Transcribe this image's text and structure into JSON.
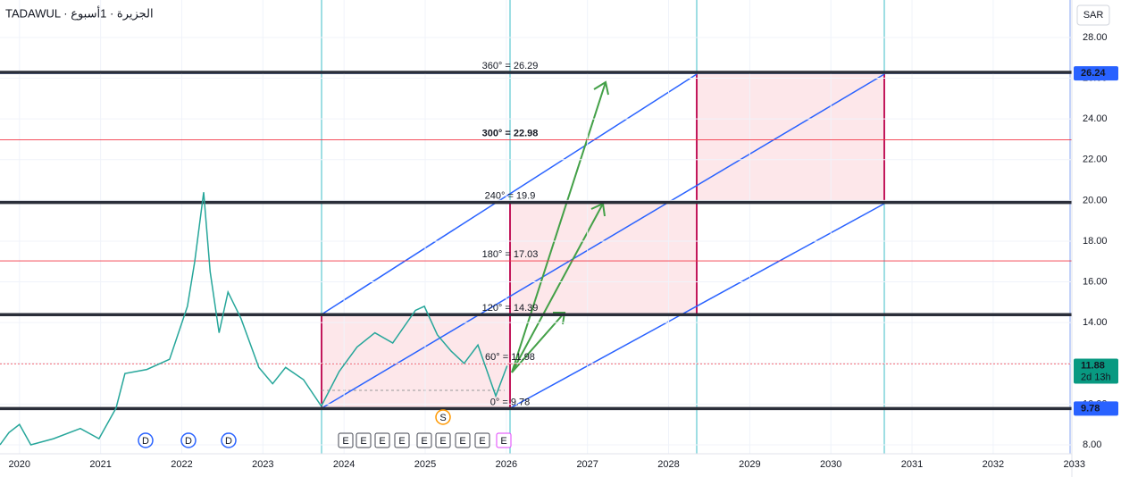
{
  "header": "TADAWUL · الجزيرة · 1أسبوع",
  "currency": "SAR",
  "chart_data": {
    "type": "line",
    "series": [
      {
        "color": "#26a69a",
        "x": [
          2019.76,
          2019.87,
          2020.0,
          2020.14,
          2020.42,
          2020.75,
          2020.98,
          2021.19,
          2021.3,
          2021.57,
          2021.85,
          2022.07,
          2022.16,
          2022.27,
          2022.35,
          2022.46,
          2022.57,
          2022.73,
          2022.95,
          2023.12,
          2023.28,
          2023.5,
          2023.72,
          2023.94,
          2024.16,
          2024.38,
          2024.6,
          2024.88,
          2024.99,
          2025.15,
          2025.32,
          2025.48,
          2025.65,
          2025.87,
          2026.01
        ],
        "values": [
          8.0,
          8.6,
          9.0,
          8.0,
          8.3,
          8.8,
          8.3,
          9.8,
          11.5,
          11.7,
          12.2,
          14.8,
          17.0,
          20.4,
          16.5,
          13.5,
          15.5,
          14.2,
          11.8,
          11.0,
          11.8,
          11.2,
          9.9,
          11.6,
          12.8,
          13.5,
          13.0,
          14.6,
          14.8,
          13.4,
          12.6,
          12.0,
          12.9,
          10.4,
          11.88
        ]
      }
    ],
    "xlim": [
      2019.76,
      2032.97
    ],
    "xticks": [
      2020,
      2021,
      2022,
      2023,
      2024,
      2025,
      2026,
      2027,
      2028,
      2029,
      2030,
      2031,
      2032,
      2033
    ],
    "ylim": [
      7.56,
      29.84
    ],
    "yticks": [
      {
        "value": 8,
        "label": "8.00"
      },
      {
        "value": 10,
        "label": "10.00"
      },
      {
        "value": 12,
        "label": "12.00"
      },
      {
        "value": 14,
        "label": "14.00"
      },
      {
        "value": 16,
        "label": "16.00"
      },
      {
        "value": 18,
        "label": "18.00"
      },
      {
        "value": 20,
        "label": "20.00"
      },
      {
        "value": 22,
        "label": "22.00"
      },
      {
        "value": 24,
        "label": "24.00"
      },
      {
        "value": 26,
        "label": "26.00"
      },
      {
        "value": 28,
        "label": "28.00"
      }
    ],
    "levels": [
      {
        "value": 26.29,
        "label": "360° = 26.29",
        "color": "#2a2e39"
      },
      {
        "value": 22.98,
        "label": "300° = 22.98",
        "color": "#f23645"
      },
      {
        "value": 19.9,
        "label": "240° = 19.9",
        "color": "#2a2e39"
      },
      {
        "value": 17.03,
        "label": "180° = 17.03",
        "color": "#f23645"
      },
      {
        "value": 14.39,
        "label": "120° = 14.39",
        "color": "#2a2e39"
      },
      {
        "value": 11.98,
        "label": "60° = 11.98",
        "color": "#f23645"
      },
      {
        "value": 9.78,
        "label": "0° = 9.78",
        "color": "#2a2e39"
      }
    ],
    "price_badges": [
      {
        "value": 26.24,
        "label": "26.24",
        "color": "#2962ff"
      },
      {
        "value": 11.88,
        "label": "11.88",
        "sub": "2d 13h",
        "color": "#089981"
      },
      {
        "value": 9.78,
        "label": "9.78",
        "color": "#2962ff"
      }
    ],
    "events": [
      "D",
      "D",
      "D",
      "S",
      "E",
      "E",
      "E",
      "E",
      "E",
      "E",
      "E",
      "E",
      "E"
    ]
  }
}
